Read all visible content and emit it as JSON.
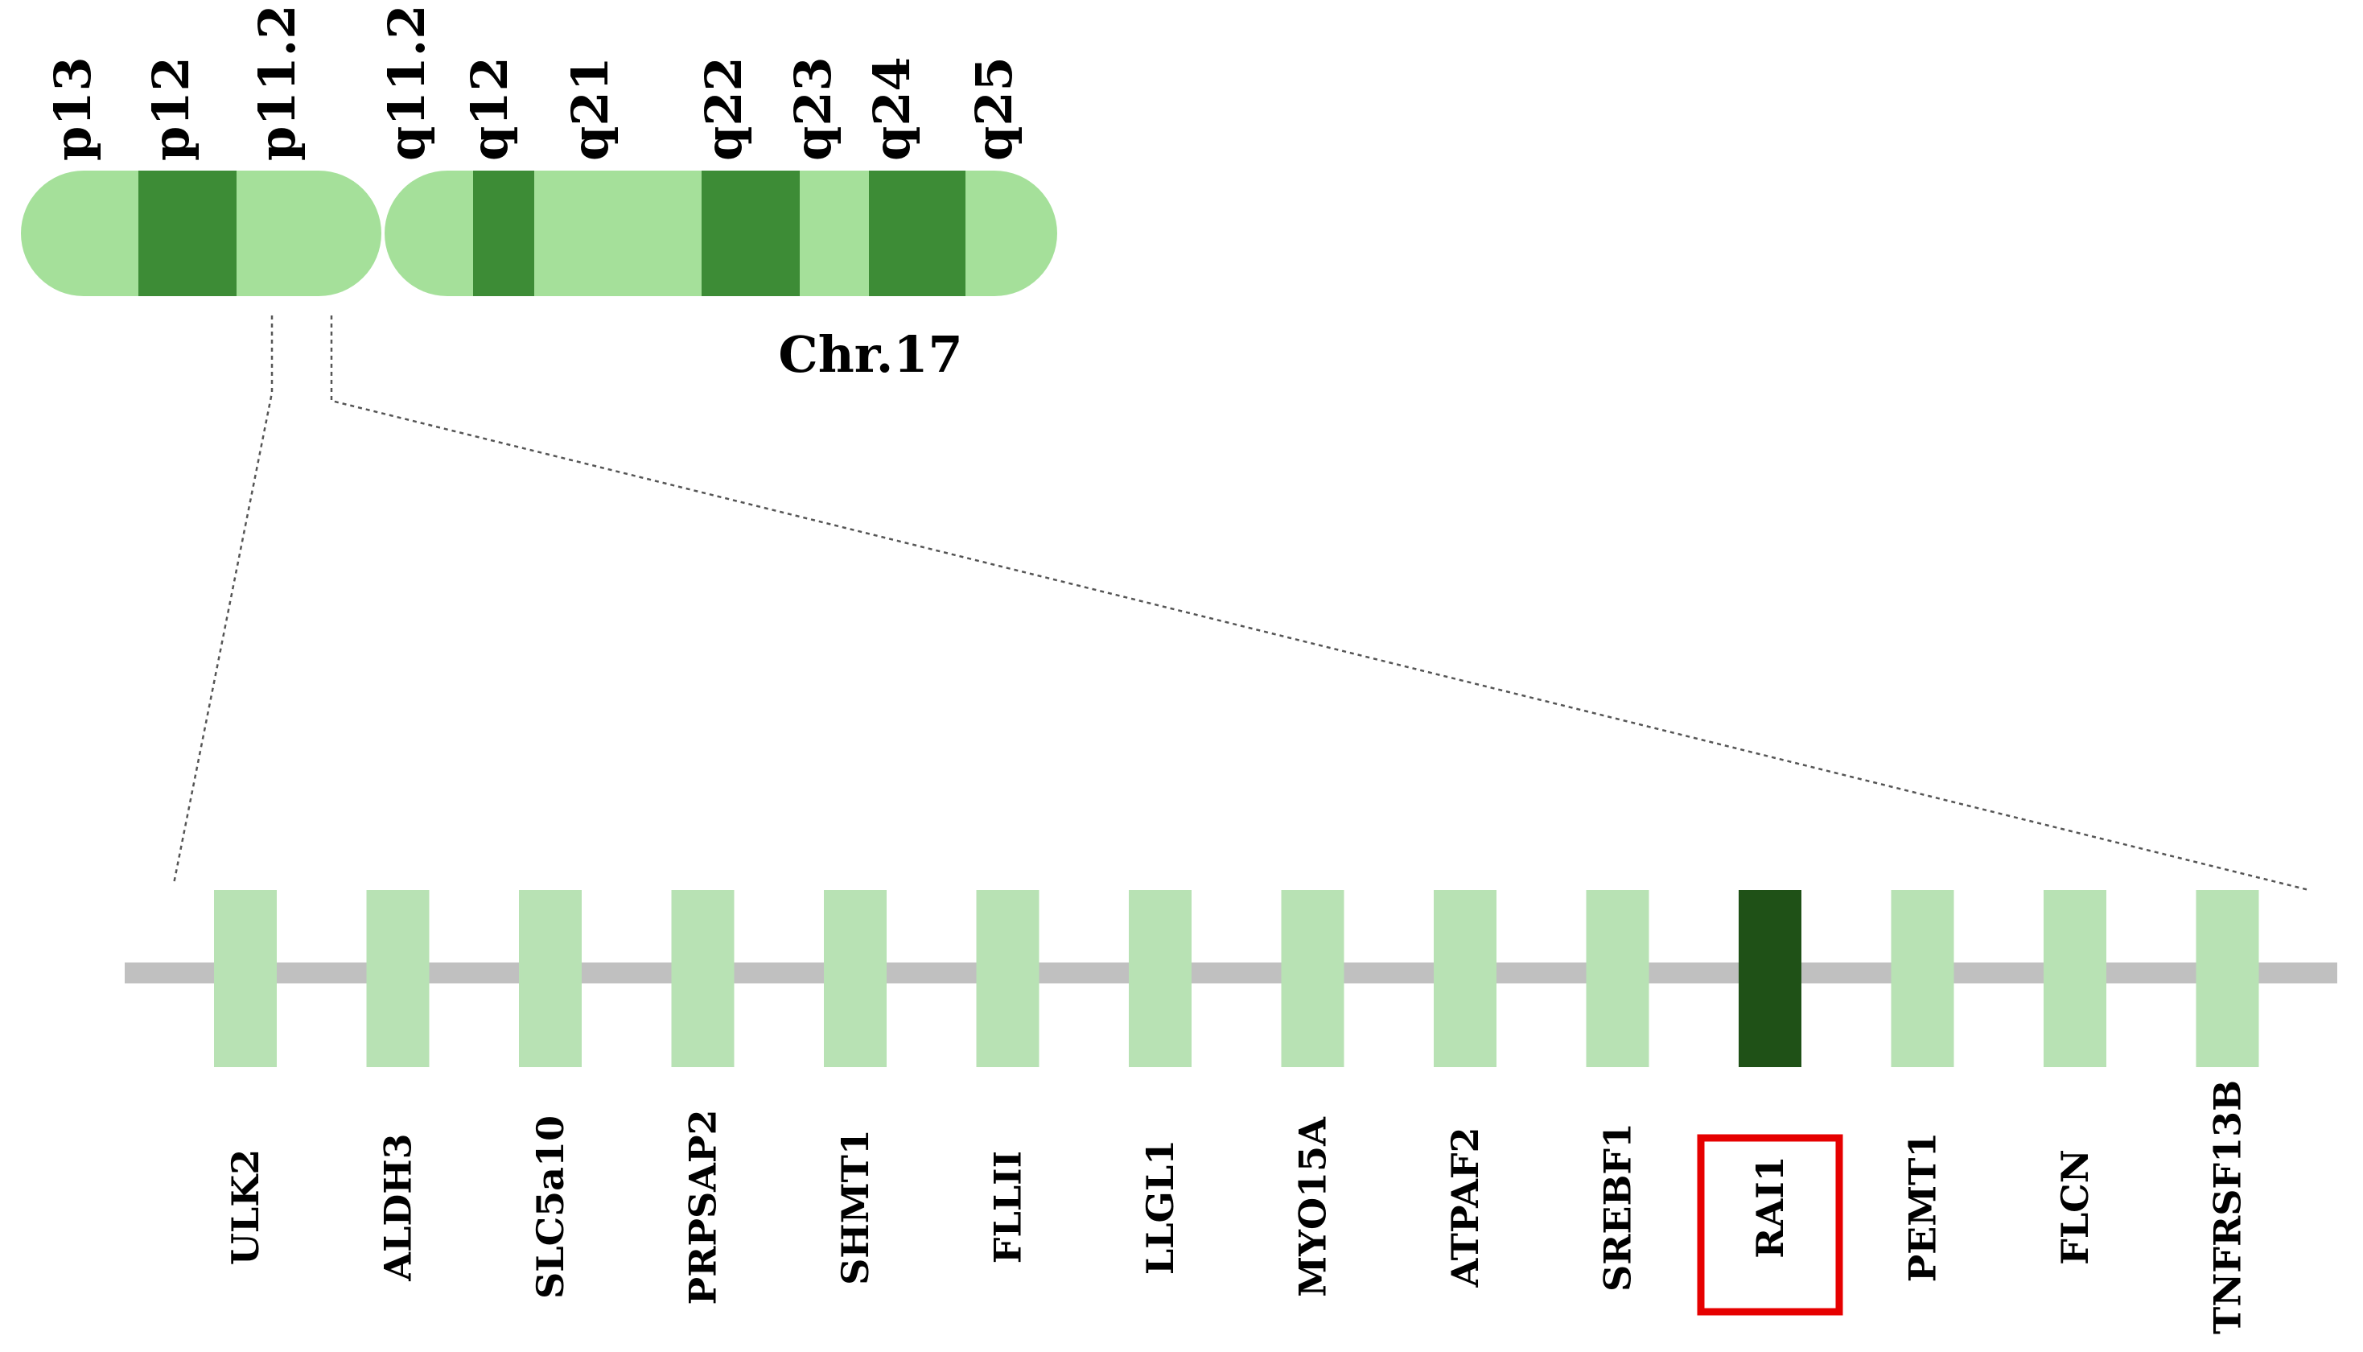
{
  "chromosome": {
    "name": "Chr.17",
    "colors": {
      "light": "#a5e09a",
      "dark": "#3d8c36"
    },
    "p_arm": [
      {
        "label": "p13",
        "shade": "light"
      },
      {
        "label": "p12",
        "shade": "dark"
      },
      {
        "label": "p11.2",
        "shade": "light"
      }
    ],
    "q_arm": [
      {
        "label": "q11.2",
        "shade": "light"
      },
      {
        "label": "q12",
        "shade": "dark"
      },
      {
        "label": "q21",
        "shade": "light"
      },
      {
        "label": "q22",
        "shade": "dark"
      },
      {
        "label": "q23",
        "shade": "light"
      },
      {
        "label": "q24",
        "shade": "dark"
      },
      {
        "label": "q25",
        "shade": "light"
      }
    ]
  },
  "gene_track": {
    "colors": {
      "backbone": "#c0c0c0",
      "gene": "#b8e2b4",
      "highlight_gene": "#1f5117",
      "highlight_box": "#e60000"
    },
    "genes": [
      {
        "label": "ULK2",
        "highlighted": false
      },
      {
        "label": "ALDH3",
        "highlighted": false
      },
      {
        "label": "SLC5a10",
        "highlighted": false
      },
      {
        "label": "PRPSAP2",
        "highlighted": false
      },
      {
        "label": "SHMT1",
        "highlighted": false
      },
      {
        "label": "FLLII",
        "highlighted": false
      },
      {
        "label": "LLGL1",
        "highlighted": false
      },
      {
        "label": "MYO15A",
        "highlighted": false
      },
      {
        "label": "ATPAF2",
        "highlighted": false
      },
      {
        "label": "SREBF1",
        "highlighted": false
      },
      {
        "label": "RAI1",
        "highlighted": true
      },
      {
        "label": "PEMT1",
        "highlighted": false
      },
      {
        "label": "FLCN",
        "highlighted": false
      },
      {
        "label": "TNFRSF13B",
        "highlighted": false
      }
    ]
  }
}
